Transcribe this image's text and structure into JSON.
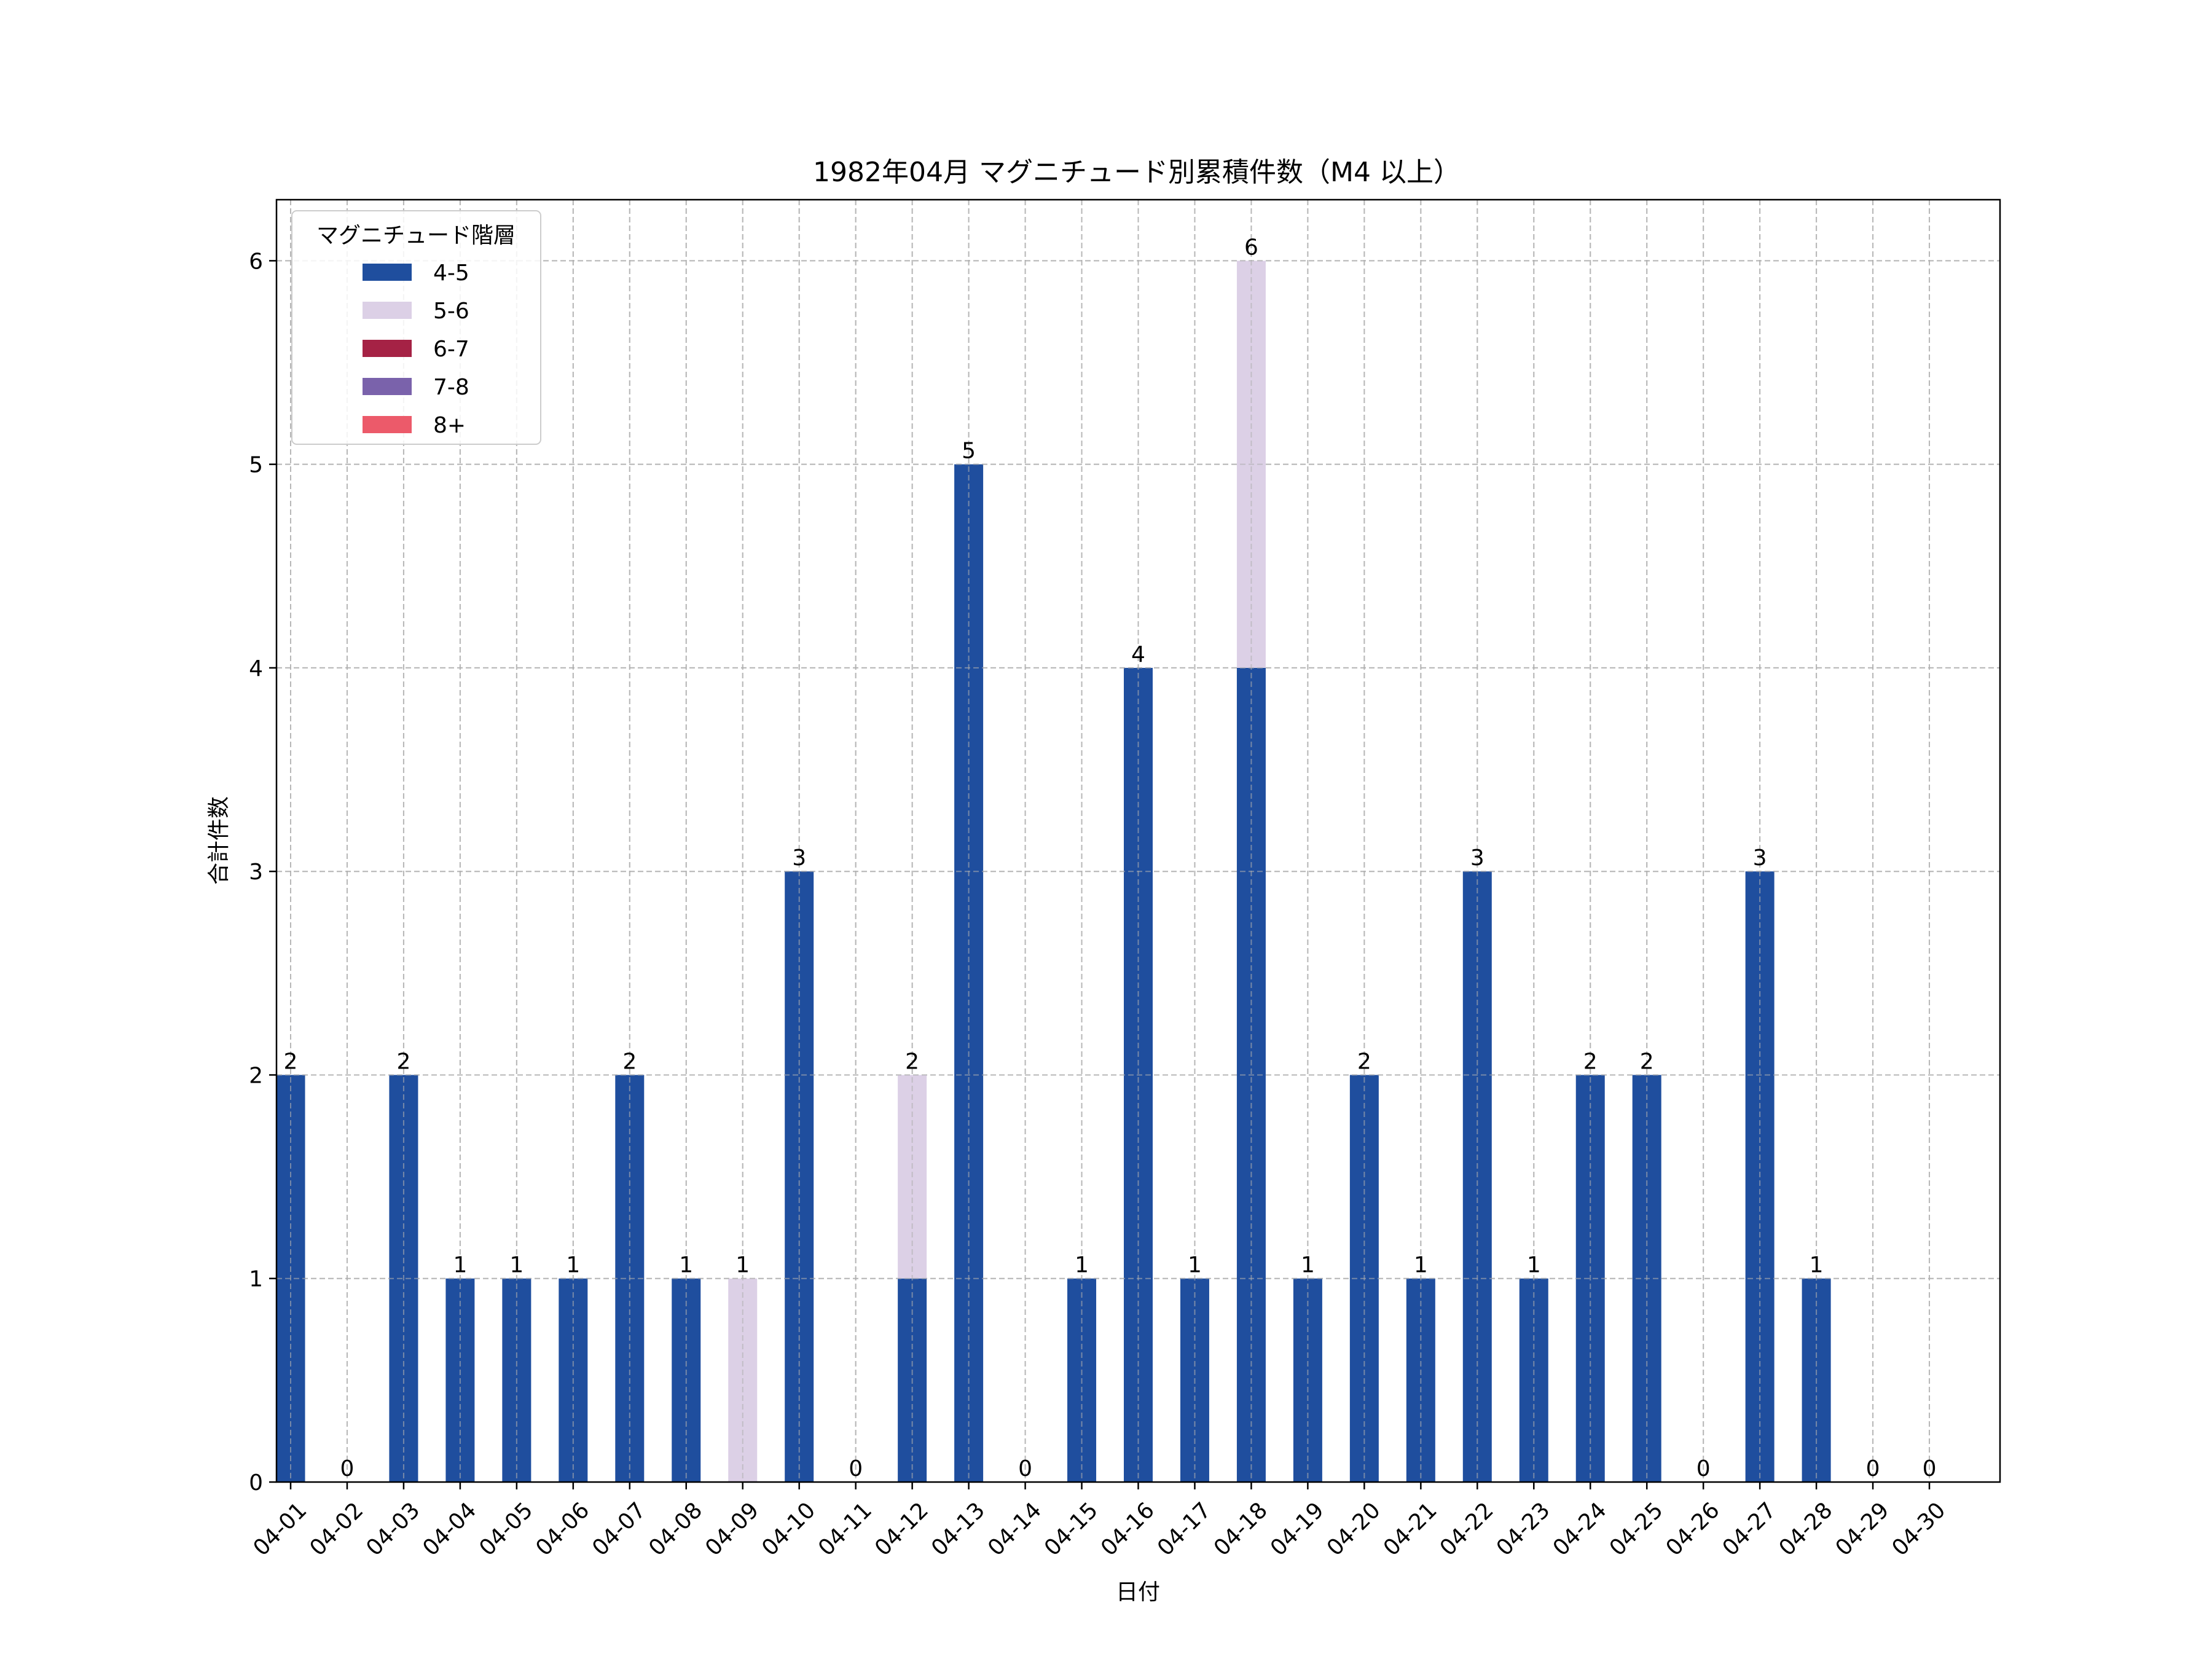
{
  "chart_data": {
    "type": "bar",
    "stacked": true,
    "title": "1982年04月 マグニチュード別累積件数（M4 以上）",
    "xlabel": "日付",
    "ylabel": "合計件数",
    "ylim": [
      0,
      6.3
    ],
    "yticks": [
      0,
      1,
      2,
      3,
      4,
      5,
      6
    ],
    "grid": true,
    "legend_title": "マグニチュード階層",
    "legend_position": "top-left",
    "categories": [
      "04-01",
      "04-02",
      "04-03",
      "04-04",
      "04-05",
      "04-06",
      "04-07",
      "04-08",
      "04-09",
      "04-10",
      "04-11",
      "04-12",
      "04-13",
      "04-14",
      "04-15",
      "04-16",
      "04-17",
      "04-18",
      "04-19",
      "04-20",
      "04-21",
      "04-22",
      "04-23",
      "04-24",
      "04-25",
      "04-26",
      "04-27",
      "04-28",
      "04-29",
      "04-30"
    ],
    "series": [
      {
        "name": "4-5",
        "color": "#1f4e9e",
        "values": [
          2,
          0,
          2,
          1,
          1,
          1,
          2,
          1,
          0,
          3,
          0,
          1,
          5,
          0,
          1,
          4,
          1,
          4,
          1,
          2,
          1,
          3,
          1,
          2,
          2,
          0,
          3,
          1,
          0,
          0
        ]
      },
      {
        "name": "5-6",
        "color": "#dcd0e6",
        "values": [
          0,
          0,
          0,
          0,
          0,
          0,
          0,
          0,
          1,
          0,
          0,
          1,
          0,
          0,
          0,
          0,
          0,
          2,
          0,
          0,
          0,
          0,
          0,
          0,
          0,
          0,
          0,
          0,
          0,
          0
        ]
      },
      {
        "name": "6-7",
        "color": "#a52245",
        "values": [
          0,
          0,
          0,
          0,
          0,
          0,
          0,
          0,
          0,
          0,
          0,
          0,
          0,
          0,
          0,
          0,
          0,
          0,
          0,
          0,
          0,
          0,
          0,
          0,
          0,
          0,
          0,
          0,
          0,
          0
        ]
      },
      {
        "name": "7-8",
        "color": "#7a62ab",
        "values": [
          0,
          0,
          0,
          0,
          0,
          0,
          0,
          0,
          0,
          0,
          0,
          0,
          0,
          0,
          0,
          0,
          0,
          0,
          0,
          0,
          0,
          0,
          0,
          0,
          0,
          0,
          0,
          0,
          0,
          0
        ]
      },
      {
        "name": "8+",
        "color": "#ec5a6a",
        "values": [
          0,
          0,
          0,
          0,
          0,
          0,
          0,
          0,
          0,
          0,
          0,
          0,
          0,
          0,
          0,
          0,
          0,
          0,
          0,
          0,
          0,
          0,
          0,
          0,
          0,
          0,
          0,
          0,
          0,
          0
        ]
      }
    ],
    "totals": [
      2,
      0,
      2,
      1,
      1,
      1,
      2,
      1,
      1,
      3,
      0,
      2,
      5,
      0,
      1,
      4,
      1,
      6,
      1,
      2,
      1,
      3,
      1,
      2,
      2,
      0,
      3,
      1,
      0,
      0
    ]
  }
}
